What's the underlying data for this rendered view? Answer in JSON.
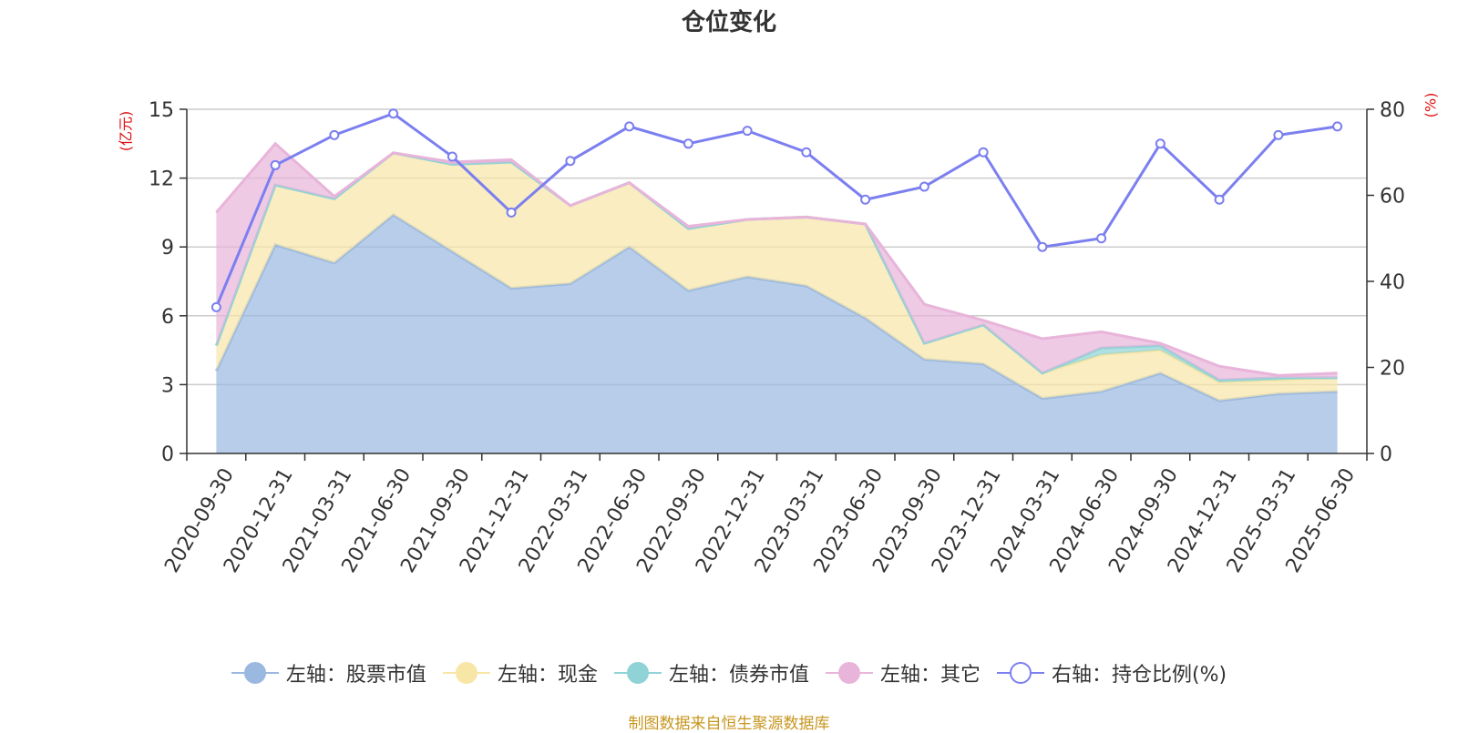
{
  "chart_data": {
    "type": "area",
    "title": "仓位变化",
    "left_axis_unit": "(亿元)",
    "right_axis_unit": "(%)",
    "categories": [
      "2020-09-30",
      "2020-12-31",
      "2021-03-31",
      "2021-06-30",
      "2021-09-30",
      "2021-12-31",
      "2022-03-31",
      "2022-06-30",
      "2022-09-30",
      "2022-12-31",
      "2023-03-31",
      "2023-06-30",
      "2023-09-30",
      "2023-12-31",
      "2024-03-31",
      "2024-06-30",
      "2024-09-30",
      "2024-12-31",
      "2025-03-31",
      "2025-06-30"
    ],
    "left_ylim": [
      0,
      15
    ],
    "left_ticks": [
      0,
      3,
      6,
      9,
      12,
      15
    ],
    "right_ylim": [
      0,
      80
    ],
    "right_ticks": [
      0,
      20,
      40,
      60,
      80
    ],
    "grid": true,
    "legend_position": "bottom",
    "series": [
      {
        "name": "左轴：股票市值",
        "axis": "left",
        "kind": "stacked-area",
        "color": "#9ab8e0",
        "values": [
          3.6,
          9.1,
          8.3,
          10.4,
          8.8,
          7.2,
          7.4,
          9.0,
          7.1,
          7.7,
          7.3,
          5.9,
          4.1,
          3.9,
          2.4,
          2.7,
          3.5,
          2.3,
          2.6,
          2.7
        ]
      },
      {
        "name": "左轴：现金",
        "axis": "left",
        "kind": "stacked-area",
        "color": "#f7e6a6",
        "values": [
          1.1,
          2.6,
          2.8,
          2.7,
          3.8,
          5.5,
          3.4,
          2.8,
          2.7,
          2.5,
          3.0,
          4.1,
          0.7,
          1.7,
          1.1,
          1.6,
          1.0,
          0.8,
          0.6,
          0.6
        ]
      },
      {
        "name": "左轴：债券市值",
        "axis": "left",
        "kind": "stacked-area",
        "color": "#8fd3d6",
        "values": [
          0,
          0,
          0,
          0,
          0,
          0,
          0,
          0,
          0,
          0,
          0,
          0,
          0,
          0,
          0,
          0.3,
          0.2,
          0.1,
          0.1,
          0
        ]
      },
      {
        "name": "左轴：其它",
        "axis": "left",
        "kind": "stacked-area",
        "color": "#e8b4da",
        "values": [
          5.8,
          1.8,
          0.1,
          0.0,
          0.1,
          0.1,
          0.0,
          0.0,
          0.1,
          0.0,
          0.0,
          0.0,
          1.7,
          0.2,
          1.5,
          0.7,
          0.1,
          0.6,
          0.1,
          0.2
        ]
      },
      {
        "name": "右轴：持仓比例(%)",
        "axis": "right",
        "kind": "line",
        "color": "#7b7fef",
        "values": [
          34,
          67,
          74,
          79,
          69,
          56,
          68,
          76,
          72,
          75,
          70,
          59,
          62,
          70,
          48,
          50,
          72,
          59,
          74,
          76
        ]
      }
    ]
  },
  "legend": {
    "items": [
      {
        "label": "左轴：股票市值",
        "color": "#9ab8e0",
        "symbol": "filled"
      },
      {
        "label": "左轴：现金",
        "color": "#f7e6a6",
        "symbol": "filled"
      },
      {
        "label": "左轴：债券市值",
        "color": "#8fd3d6",
        "symbol": "filled"
      },
      {
        "label": "左轴：其它",
        "color": "#e8b4da",
        "symbol": "filled"
      },
      {
        "label": "右轴：持仓比例(%)",
        "color": "#7b7fef",
        "symbol": "hollow"
      }
    ]
  },
  "source_note": "制图数据来自恒生聚源数据库"
}
